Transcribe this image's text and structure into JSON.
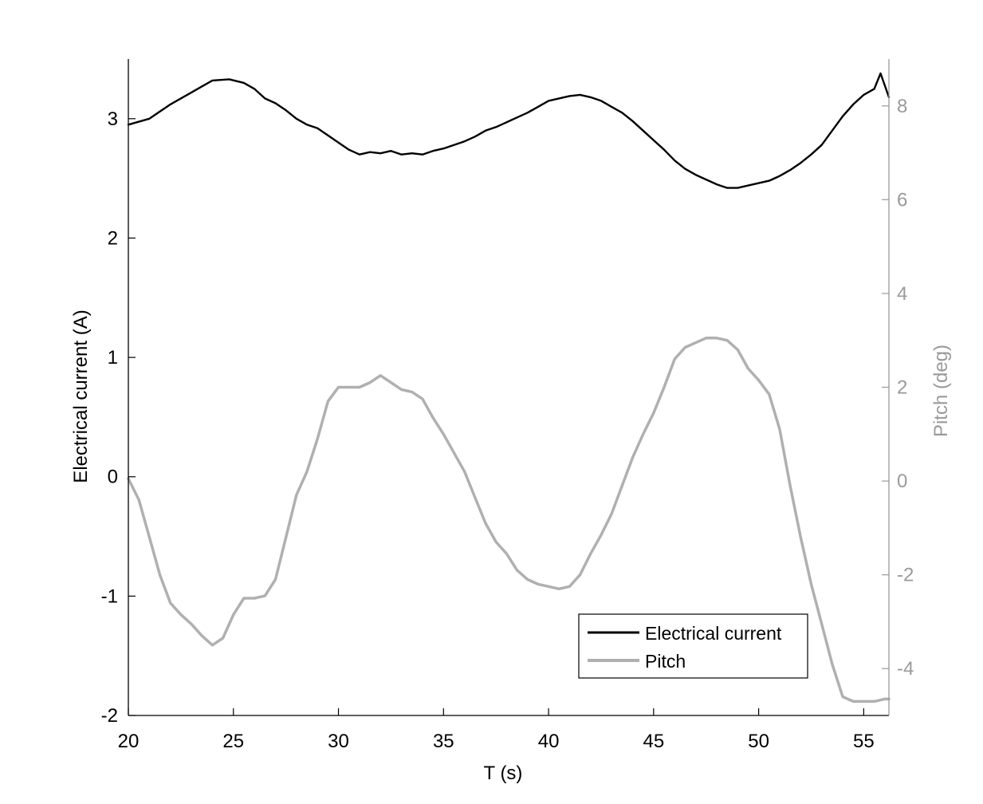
{
  "chart_data": {
    "type": "line",
    "title": "",
    "xlabel": "T (s)",
    "ylabel_left": "Electrical current (A)",
    "ylabel_right": "Pitch (deg)",
    "xlim": [
      20,
      56.2
    ],
    "ylim_left": [
      -2,
      3.5
    ],
    "ylim_right": [
      -5,
      9
    ],
    "x_ticks": [
      20,
      25,
      30,
      35,
      40,
      45,
      50,
      55
    ],
    "x_tick_labels": [
      "20",
      "25",
      "30",
      "35",
      "40",
      "45",
      "50",
      "55"
    ],
    "y_left_ticks": [
      -2,
      -1,
      0,
      1,
      2,
      3
    ],
    "y_left_tick_labels": [
      "-2",
      "-1",
      "0",
      "1",
      "2",
      "3"
    ],
    "y_right_ticks": [
      -4,
      -2,
      0,
      2,
      4,
      6,
      8
    ],
    "y_right_tick_labels": [
      "-4",
      "-2",
      "0",
      "2",
      "4",
      "6",
      "8"
    ],
    "grid": false,
    "legend_position": "bottom-right",
    "colors": {
      "current": "#000000",
      "pitch": "#b0b0b0",
      "right_axis": "#9a9a9a"
    },
    "series": [
      {
        "name": "Electrical current",
        "axis": "left",
        "x": [
          20,
          21,
          22,
          23,
          24,
          24.8,
          25.5,
          26,
          26.5,
          27,
          27.5,
          28,
          28.5,
          29,
          29.5,
          30,
          30.5,
          31,
          31.5,
          32,
          32.5,
          33,
          33.5,
          34,
          34.5,
          35,
          35.5,
          36,
          36.5,
          37,
          37.5,
          38,
          38.5,
          39,
          39.5,
          40,
          40.5,
          41,
          41.5,
          42,
          42.5,
          43,
          43.5,
          44,
          44.5,
          45,
          45.5,
          46,
          46.5,
          47,
          47.5,
          48,
          48.5,
          49,
          49.5,
          50,
          50.5,
          51,
          51.5,
          52,
          52.5,
          53,
          53.5,
          54,
          54.5,
          55,
          55.5,
          55.8,
          56.2
        ],
        "values": [
          2.95,
          3.0,
          3.12,
          3.22,
          3.32,
          3.33,
          3.3,
          3.25,
          3.17,
          3.13,
          3.07,
          3.0,
          2.95,
          2.92,
          2.86,
          2.8,
          2.74,
          2.7,
          2.72,
          2.71,
          2.73,
          2.7,
          2.71,
          2.7,
          2.73,
          2.75,
          2.78,
          2.81,
          2.85,
          2.9,
          2.93,
          2.97,
          3.01,
          3.05,
          3.1,
          3.15,
          3.17,
          3.19,
          3.2,
          3.18,
          3.15,
          3.1,
          3.05,
          2.98,
          2.9,
          2.82,
          2.74,
          2.65,
          2.58,
          2.53,
          2.49,
          2.45,
          2.42,
          2.42,
          2.44,
          2.46,
          2.48,
          2.52,
          2.57,
          2.63,
          2.7,
          2.78,
          2.9,
          3.02,
          3.12,
          3.2,
          3.25,
          3.38,
          3.18
        ]
      },
      {
        "name": "Pitch",
        "axis": "right",
        "x": [
          20,
          20.5,
          21,
          21.5,
          22,
          22.5,
          23,
          23.5,
          24,
          24.5,
          25,
          25.5,
          26,
          26.5,
          27,
          27.5,
          28,
          28.5,
          29,
          29.5,
          30,
          30.5,
          31,
          31.5,
          32,
          32.5,
          33,
          33.5,
          34,
          34.5,
          35,
          35.5,
          36,
          36.5,
          37,
          37.5,
          38,
          38.5,
          39,
          39.5,
          40,
          40.5,
          41,
          41.5,
          42,
          42.5,
          43,
          43.5,
          44,
          44.5,
          45,
          45.5,
          46,
          46.5,
          47,
          47.5,
          48,
          48.5,
          49,
          49.5,
          50,
          50.5,
          51,
          51.5,
          52,
          52.5,
          53,
          53.5,
          54,
          54.5,
          55,
          55.5,
          56,
          56.2
        ],
        "values": [
          0.05,
          -0.4,
          -1.2,
          -2.0,
          -2.6,
          -2.85,
          -3.05,
          -3.3,
          -3.5,
          -3.35,
          -2.85,
          -2.5,
          -2.5,
          -2.45,
          -2.1,
          -1.2,
          -0.3,
          0.2,
          0.9,
          1.7,
          2.0,
          2.0,
          2.0,
          2.1,
          2.25,
          2.1,
          1.95,
          1.9,
          1.75,
          1.35,
          1.0,
          0.6,
          0.2,
          -0.35,
          -0.9,
          -1.3,
          -1.55,
          -1.9,
          -2.1,
          -2.2,
          -2.25,
          -2.3,
          -2.25,
          -2.0,
          -1.55,
          -1.15,
          -0.7,
          -0.1,
          0.5,
          1.0,
          1.45,
          2.0,
          2.6,
          2.85,
          2.95,
          3.05,
          3.05,
          3.0,
          2.8,
          2.4,
          2.15,
          1.85,
          1.1,
          -0.1,
          -1.2,
          -2.2,
          -3.05,
          -3.9,
          -4.6,
          -4.7,
          -4.7,
          -4.7,
          -4.65,
          -4.65
        ]
      }
    ]
  }
}
